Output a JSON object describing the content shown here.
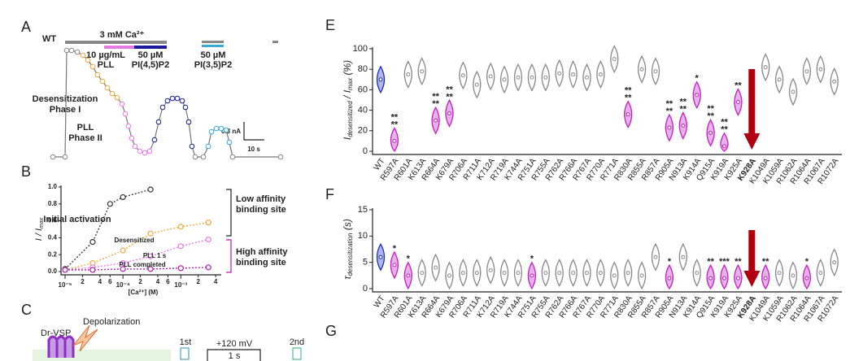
{
  "panel_labels": [
    "A",
    "B",
    "C",
    "E",
    "F",
    "G"
  ],
  "panel_a": {
    "genotype": "WT",
    "calcium": "3 mM Ca²⁺",
    "pll_conc": "10 µg/mL",
    "pll": "PLL",
    "pip2_conc": "50 µM",
    "pip2": "PI(4,5)P2",
    "pi35_conc": "50 µM",
    "pi35": "PI(3,5)P2",
    "phase1": [
      "Desensitization",
      "Phase I"
    ],
    "phase2": [
      "PLL",
      "Phase II"
    ],
    "scale_current": "0.3 nA",
    "scale_time": "10 s"
  },
  "panel_c": {
    "protein": "Dr-VSP",
    "stimulus": "Depolarization",
    "voltage": "+120 mV",
    "duration": "1 s",
    "first": "1st",
    "second": "2nd"
  },
  "chart_data": [
    {
      "type": "scatter",
      "xlabel": "[Ca²⁺] (M)",
      "ylabel": [
        "I / I",
        "max"
      ],
      "log_x": true,
      "xlim": [
        1e-05,
        0.005
      ],
      "ylim": [
        0,
        1
      ],
      "xticks": [
        {
          "value": 1e-05,
          "label": "10⁻⁵"
        },
        {
          "value": 2e-05,
          "label": "2"
        },
        {
          "value": 4e-05,
          "label": "4"
        },
        {
          "value": 6e-05,
          "label": "6"
        },
        {
          "value": 0.0001,
          "label": "10⁻⁴"
        },
        {
          "value": 0.0002,
          "label": "2"
        },
        {
          "value": 0.0004,
          "label": "4"
        },
        {
          "value": 0.0006,
          "label": "6"
        },
        {
          "value": 0.001,
          "label": "10⁻³"
        },
        {
          "value": 0.002,
          "label": "2"
        },
        {
          "value": 0.004,
          "label": "4"
        }
      ],
      "yticks": [
        {
          "value": 0,
          "label": "0.0"
        },
        0.2,
        0.4,
        0.6,
        0.8,
        {
          "value": 1,
          "label": "1.0"
        }
      ],
      "series": [
        {
          "name": "Initial activation",
          "color": "#333333",
          "x": [
            1e-05,
            3e-05,
            6e-05,
            0.0001,
            0.0003
          ],
          "values": [
            0.03,
            0.35,
            0.8,
            0.88,
            0.97
          ]
        },
        {
          "name": "Desensitized",
          "color": "#e8a838",
          "x": [
            1e-05,
            3e-05,
            0.0001,
            0.0003,
            0.001,
            0.003
          ],
          "values": [
            0.02,
            0.1,
            0.25,
            0.45,
            0.53,
            0.58
          ]
        },
        {
          "name": "PLL 1 s",
          "color": "#e47ae4",
          "x": [
            1e-05,
            3e-05,
            0.0001,
            0.0003,
            0.001,
            0.003
          ],
          "values": [
            0.02,
            0.05,
            0.1,
            0.18,
            0.3,
            0.38
          ]
        },
        {
          "name": "PLL completed",
          "color": "#b01cb0",
          "x": [
            1e-05,
            3e-05,
            0.0001,
            0.0003,
            0.001,
            0.003
          ],
          "values": [
            0.02,
            0.02,
            0.03,
            0.03,
            0.04,
            0.05
          ]
        }
      ],
      "annotations": [
        "Low affinity",
        "binding site",
        "High affinity",
        "binding site"
      ]
    },
    {
      "type": "violin",
      "ylabel": [
        "I",
        "desensitized",
        " / I",
        "max",
        " (%)"
      ],
      "ylim": [
        0,
        100
      ],
      "yticks": [
        0,
        20,
        40,
        60,
        80,
        100
      ],
      "highlight": "K928A",
      "categories": [
        "WT",
        "R597A",
        "R601A",
        "K613A",
        "R664A",
        "K679A",
        "R706A",
        "R711A",
        "K712A",
        "R719A",
        "K744A",
        "R751A",
        "R755A",
        "R762A",
        "R766A",
        "R767A",
        "R770A",
        "R771A",
        "R830A",
        "R855A",
        "R857A",
        "R905A",
        "N913A",
        "K914A",
        "Q915A",
        "K919A",
        "K925A",
        "K928A",
        "K1049A",
        "K1059A",
        "R1062A",
        "R1064A",
        "R1067A",
        "R1072A"
      ],
      "values": [
        70,
        10,
        75,
        78,
        30,
        37,
        74,
        65,
        73,
        70,
        72,
        72,
        72,
        76,
        75,
        72,
        75,
        90,
        36,
        80,
        78,
        23,
        25,
        55,
        18,
        5,
        48,
        null,
        82,
        70,
        58,
        78,
        80,
        68
      ],
      "colors": [
        "#1f2fbf",
        "#c020c0",
        "#888888",
        "#888888",
        "#c020c0",
        "#c020c0",
        "#888888",
        "#888888",
        "#888888",
        "#888888",
        "#888888",
        "#888888",
        "#888888",
        "#888888",
        "#888888",
        "#888888",
        "#888888",
        "#888888",
        "#c020c0",
        "#888888",
        "#888888",
        "#c020c0",
        "#c020c0",
        "#c020c0",
        "#c020c0",
        "#c020c0",
        "#c020c0",
        "#888888",
        "#888888",
        "#888888",
        "#888888",
        "#888888",
        "#888888",
        "#888888"
      ],
      "stars": [
        null,
        [
          "**",
          "**"
        ],
        null,
        null,
        [
          "**",
          "**"
        ],
        [
          "**",
          "**"
        ],
        null,
        null,
        null,
        null,
        null,
        null,
        null,
        null,
        null,
        null,
        null,
        null,
        [
          "**",
          "**"
        ],
        null,
        null,
        [
          "**",
          "**"
        ],
        [
          "**",
          "**"
        ],
        [
          "*"
        ],
        [
          "**",
          "**"
        ],
        [
          "**",
          "**"
        ],
        [
          "**"
        ],
        null,
        null,
        null,
        null,
        null,
        null,
        null
      ]
    },
    {
      "type": "violin",
      "ylabel": [
        "τ",
        "desensitization",
        " (s)"
      ],
      "ylim": [
        0,
        15
      ],
      "yticks": [
        0,
        5,
        10,
        15
      ],
      "highlight": "K928A",
      "categories": [
        "WT",
        "R597A",
        "R601A",
        "K613A",
        "R664A",
        "K679A",
        "R706A",
        "R711A",
        "K712A",
        "R719A",
        "K744A",
        "R751A",
        "R755A",
        "R762A",
        "R766A",
        "R767A",
        "R770A",
        "R771A",
        "R830A",
        "R855A",
        "R857A",
        "R905A",
        "N913A",
        "K914A",
        "Q915A",
        "K919A",
        "K925A",
        "K928A",
        "K1049A",
        "K1059A",
        "R1062A",
        "R1064A",
        "R1067A",
        "R1072A"
      ],
      "values": [
        6,
        4.5,
        2.5,
        3,
        4,
        2.5,
        3,
        3,
        3.5,
        3,
        3,
        2.5,
        3,
        3,
        3,
        3,
        3,
        2.5,
        3,
        2.5,
        6,
        2,
        6,
        3,
        2,
        2,
        2,
        null,
        2,
        3,
        2.5,
        2,
        3,
        5
      ],
      "colors": [
        "#1f2fbf",
        "#c020c0",
        "#c020c0",
        "#888888",
        "#888888",
        "#888888",
        "#888888",
        "#888888",
        "#888888",
        "#888888",
        "#888888",
        "#c020c0",
        "#888888",
        "#888888",
        "#888888",
        "#888888",
        "#888888",
        "#888888",
        "#888888",
        "#888888",
        "#888888",
        "#c020c0",
        "#888888",
        "#888888",
        "#c020c0",
        "#c020c0",
        "#c020c0",
        "#888888",
        "#c020c0",
        "#888888",
        "#888888",
        "#c020c0",
        "#888888",
        "#888888"
      ],
      "stars": [
        null,
        [
          "*"
        ],
        [
          "*"
        ],
        null,
        null,
        null,
        null,
        null,
        null,
        null,
        null,
        [
          "*"
        ],
        null,
        null,
        null,
        null,
        null,
        null,
        null,
        null,
        null,
        [
          "*"
        ],
        null,
        null,
        [
          "**"
        ],
        [
          "***"
        ],
        [
          "**"
        ],
        null,
        [
          "**"
        ],
        null,
        null,
        [
          "*"
        ],
        null,
        null
      ]
    }
  ]
}
